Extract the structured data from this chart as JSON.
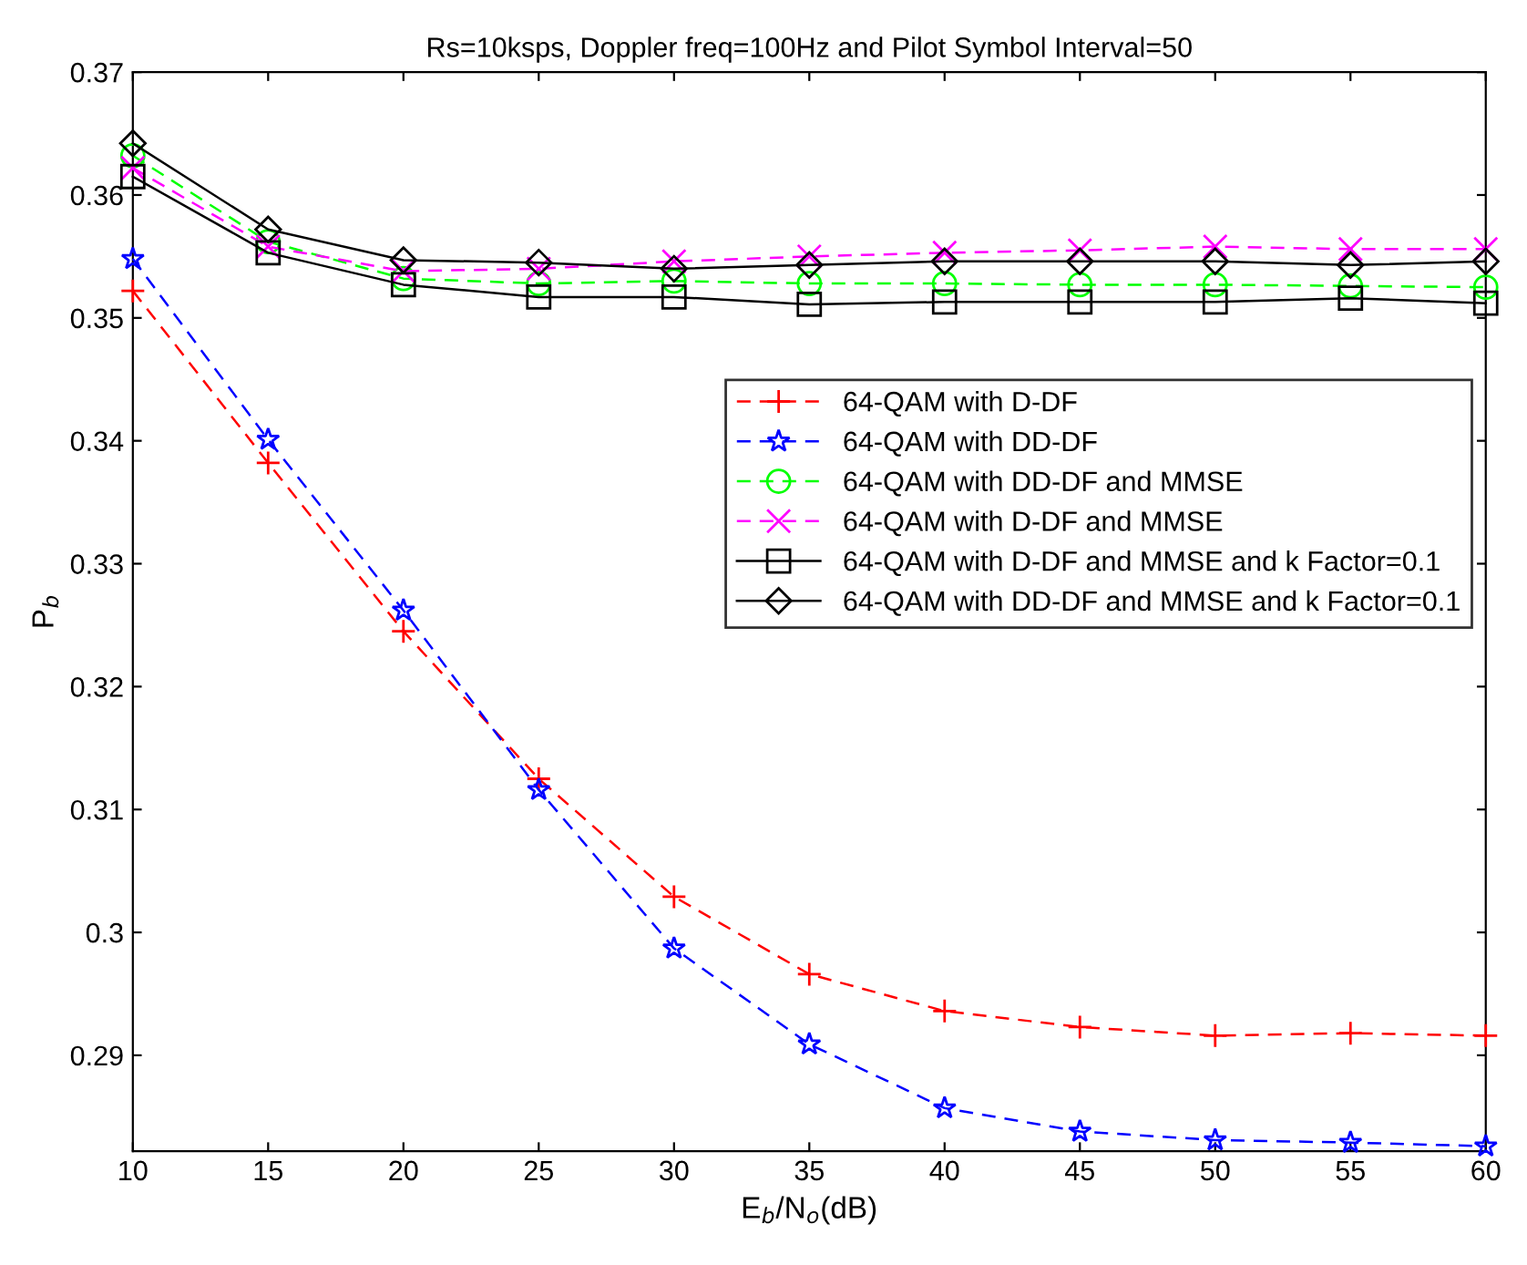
{
  "chart_data": {
    "type": "line",
    "title": "Rs=10ksps, Doppler freq=100Hz and Pilot Symbol Interval=50",
    "xlabel": "E$_{b}$/N$_{o}$(dB)",
    "ylabel": "P$_{b}$",
    "x": [
      10,
      15,
      20,
      25,
      30,
      35,
      40,
      45,
      50,
      55,
      60
    ],
    "xlim": [
      10,
      60
    ],
    "xticks": [
      10,
      15,
      20,
      25,
      30,
      35,
      40,
      45,
      50,
      55,
      60
    ],
    "ylim": [
      0.2822,
      0.37
    ],
    "yticks": [
      {
        "value": 0.29,
        "label": "0.29"
      },
      {
        "value": 0.3,
        "label": "0.3"
      },
      {
        "value": 0.31,
        "label": "0.31"
      },
      {
        "value": 0.32,
        "label": "0.32"
      },
      {
        "value": 0.33,
        "label": "0.33"
      },
      {
        "value": 0.34,
        "label": "0.34"
      },
      {
        "value": 0.35,
        "label": "0.35"
      },
      {
        "value": 0.36,
        "label": "0.36"
      },
      {
        "value": 0.37,
        "label": "0.37"
      }
    ],
    "grid": false,
    "legend": "right",
    "series": [
      {
        "name": "64-QAM with D-DF",
        "color": "#ff0000",
        "marker": "plus",
        "line_style": "dashed",
        "values": [
          0.3522,
          0.3382,
          0.3245,
          0.3125,
          0.3029,
          0.2966,
          0.2936,
          0.2923,
          0.2916,
          0.2918,
          0.2916
        ]
      },
      {
        "name": "64-QAM with DD-DF",
        "color": "#0000ff",
        "marker": "star",
        "line_style": "dashed",
        "values": [
          0.3548,
          0.3401,
          0.3262,
          0.3116,
          0.2987,
          0.2909,
          0.2857,
          0.2838,
          0.2831,
          0.2829,
          0.2826
        ]
      },
      {
        "name": "64-QAM with DD-DF and MMSE",
        "color": "#00ff00",
        "marker": "circle",
        "line_style": "dashed",
        "values": [
          0.3632,
          0.3562,
          0.3532,
          0.3528,
          0.353,
          0.3528,
          0.3528,
          0.3527,
          0.3527,
          0.3526,
          0.3525
        ]
      },
      {
        "name": "64-QAM with D-DF and MMSE",
        "color": "#ff00ff",
        "marker": "cross",
        "line_style": "dashed",
        "values": [
          0.3622,
          0.3558,
          0.3538,
          0.354,
          0.3546,
          0.355,
          0.3553,
          0.3555,
          0.3558,
          0.3556,
          0.3556
        ]
      },
      {
        "name": "64-QAM with D-DF and MMSE and k Factor=0.1",
        "color": "#000000",
        "marker": "square",
        "line_style": "solid",
        "values": [
          0.3615,
          0.3553,
          0.3527,
          0.3517,
          0.3517,
          0.3511,
          0.3513,
          0.3513,
          0.3513,
          0.3516,
          0.3512
        ]
      },
      {
        "name": "64-QAM with DD-DF and MMSE and k Factor=0.1",
        "color": "#000000",
        "marker": "diamond",
        "line_style": "solid",
        "values": [
          0.3642,
          0.3572,
          0.3547,
          0.3545,
          0.354,
          0.3543,
          0.3546,
          0.3546,
          0.3546,
          0.3543,
          0.3546
        ]
      }
    ]
  }
}
